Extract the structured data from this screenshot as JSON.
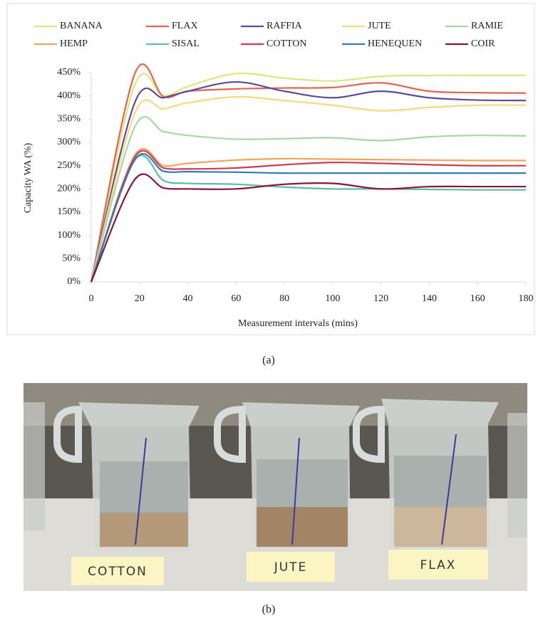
{
  "chart_data": {
    "type": "line",
    "y_label": "Capacity WA (%)",
    "x_label": "Measurement intervals (mins)",
    "x": [
      0,
      18,
      30,
      40,
      60,
      80,
      100,
      120,
      140,
      160,
      180
    ],
    "series": [
      {
        "name": "BANANA",
        "color": "#dde67a",
        "values": [
          0,
          423,
          400,
          420,
          448,
          438,
          432,
          442,
          444,
          444,
          444
        ]
      },
      {
        "name": "FLAX",
        "color": "#e8634a",
        "values": [
          0,
          447,
          398,
          410,
          415,
          417,
          418,
          428,
          410,
          407,
          406
        ]
      },
      {
        "name": "RAFFIA",
        "color": "#5b4a9e",
        "values": [
          0,
          385,
          396,
          410,
          430,
          410,
          396,
          410,
          396,
          391,
          390
        ]
      },
      {
        "name": "JUTE",
        "color": "#fcd77c",
        "values": [
          0,
          362,
          372,
          385,
          398,
          390,
          380,
          368,
          375,
          380,
          380
        ]
      },
      {
        "name": "RAMIE",
        "color": "#a6d8a4",
        "values": [
          0,
          333,
          323,
          315,
          307,
          308,
          310,
          304,
          312,
          315,
          314
        ]
      },
      {
        "name": "HEMP",
        "color": "#f2a458",
        "values": [
          0,
          272,
          250,
          255,
          262,
          265,
          264,
          263,
          262,
          261,
          261
        ]
      },
      {
        "name": "SISAL",
        "color": "#5cbf9e",
        "values": [
          0,
          262,
          218,
          212,
          210,
          204,
          200,
          200,
          199,
          198,
          198
        ]
      },
      {
        "name": "COTTON",
        "color": "#d13a54",
        "values": [
          0,
          268,
          245,
          243,
          245,
          252,
          257,
          255,
          252,
          250,
          250
        ]
      },
      {
        "name": "HENEQUEN",
        "color": "#2e7bbf",
        "values": [
          0,
          262,
          238,
          237,
          236,
          234,
          234,
          234,
          234,
          234,
          234
        ]
      },
      {
        "name": "COIR",
        "color": "#8b1538",
        "values": [
          0,
          220,
          202,
          200,
          200,
          210,
          212,
          200,
          205,
          205,
          205
        ]
      }
    ],
    "xlim": [
      0,
      180
    ],
    "xticks": [
      0,
      20,
      40,
      60,
      80,
      100,
      120,
      140,
      160,
      180
    ],
    "ylim": [
      0,
      450
    ],
    "yticks": [
      {
        "value": 0,
        "label": "0%"
      },
      {
        "value": 50,
        "label": "50%"
      },
      {
        "value": 100,
        "label": "100%"
      },
      {
        "value": 150,
        "label": "150%"
      },
      {
        "value": 200,
        "label": "200%"
      },
      {
        "value": 250,
        "label": "250%"
      },
      {
        "value": 300,
        "label": "300%"
      },
      {
        "value": 350,
        "label": "350%"
      },
      {
        "value": 400,
        "label": "400%"
      },
      {
        "value": 450,
        "label": "450%"
      }
    ],
    "grid": false,
    "legend": "top"
  },
  "captions": [
    "(a)",
    "(b)"
  ],
  "photo": {
    "labels": [
      "COTTON",
      "JUTE",
      "FLAX"
    ]
  }
}
